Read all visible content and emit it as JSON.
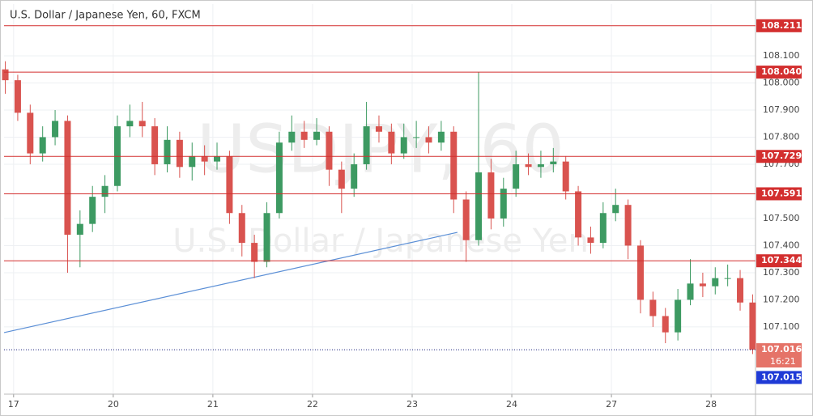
{
  "chart_data": {
    "type": "candlestick",
    "title": "U.S. Dollar / Japanese Yen, 60, FXCM",
    "watermark": "USDJPY, 60",
    "watermark_subtitle": "U.S. Dollar / Japanese Yen",
    "x": [
      -2,
      1,
      4,
      7,
      10,
      13,
      16,
      19,
      22,
      25,
      28,
      31,
      34,
      37,
      40,
      43,
      46,
      49,
      52,
      55,
      58,
      61,
      64,
      67,
      70,
      73,
      76,
      79,
      82,
      85,
      88,
      91,
      94,
      97,
      100,
      103,
      106,
      109,
      112,
      115,
      118,
      121,
      124,
      127,
      130,
      133,
      136,
      139,
      142,
      145,
      148,
      151,
      154,
      157,
      160,
      163,
      166,
      169,
      172,
      175,
      178
    ],
    "open": [
      108.05,
      108.01,
      107.89,
      107.74,
      107.8,
      107.86,
      107.44,
      107.48,
      107.58,
      107.62,
      107.84,
      107.86,
      107.84,
      107.7,
      107.79,
      107.69,
      107.73,
      107.71,
      107.73,
      107.52,
      107.41,
      107.34,
      107.52,
      107.78,
      107.82,
      107.79,
      107.82,
      107.68,
      107.61,
      107.7,
      107.84,
      107.82,
      107.74,
      107.8,
      107.8,
      107.78,
      107.82,
      107.57,
      107.42,
      107.67,
      107.5,
      107.61,
      107.7,
      107.69,
      107.7,
      107.71,
      107.6,
      107.43,
      107.41,
      107.52,
      107.55,
      107.4,
      107.2,
      107.14,
      107.08,
      107.2,
      107.26,
      107.25,
      107.28,
      107.28,
      107.19
    ],
    "high": [
      108.08,
      108.03,
      107.92,
      107.84,
      107.9,
      107.88,
      107.53,
      107.62,
      107.66,
      107.88,
      107.92,
      107.93,
      107.87,
      107.84,
      107.82,
      107.78,
      107.77,
      107.78,
      107.75,
      107.55,
      107.44,
      107.56,
      107.82,
      107.88,
      107.86,
      107.87,
      107.84,
      107.71,
      107.74,
      107.93,
      107.88,
      107.85,
      107.85,
      107.86,
      107.84,
      107.86,
      107.84,
      107.6,
      108.04,
      107.72,
      107.65,
      107.75,
      107.74,
      107.75,
      107.76,
      107.73,
      107.62,
      107.47,
      107.56,
      107.61,
      107.57,
      107.42,
      107.23,
      107.17,
      107.24,
      107.35,
      107.3,
      107.32,
      107.33,
      107.31,
      107.22
    ],
    "low": [
      107.96,
      107.86,
      107.7,
      107.71,
      107.77,
      107.3,
      107.32,
      107.45,
      107.52,
      107.6,
      107.8,
      107.8,
      107.66,
      107.67,
      107.65,
      107.64,
      107.66,
      107.68,
      107.48,
      107.36,
      107.28,
      107.32,
      107.5,
      107.75,
      107.76,
      107.77,
      107.62,
      107.52,
      107.58,
      107.68,
      107.78,
      107.7,
      107.72,
      107.76,
      107.74,
      107.75,
      107.52,
      107.34,
      107.4,
      107.46,
      107.47,
      107.58,
      107.66,
      107.65,
      107.67,
      107.57,
      107.4,
      107.37,
      107.39,
      107.49,
      107.35,
      107.15,
      107.1,
      107.04,
      107.05,
      107.18,
      107.21,
      107.22,
      107.25,
      107.16,
      107.0
    ],
    "close": [
      108.01,
      107.89,
      107.74,
      107.8,
      107.86,
      107.44,
      107.48,
      107.58,
      107.62,
      107.84,
      107.86,
      107.84,
      107.7,
      107.79,
      107.69,
      107.73,
      107.71,
      107.73,
      107.52,
      107.41,
      107.34,
      107.52,
      107.78,
      107.82,
      107.79,
      107.82,
      107.68,
      107.61,
      107.7,
      107.84,
      107.82,
      107.74,
      107.8,
      107.8,
      107.78,
      107.82,
      107.57,
      107.42,
      107.67,
      107.5,
      107.61,
      107.7,
      107.69,
      107.7,
      107.71,
      107.6,
      107.43,
      107.41,
      107.52,
      107.55,
      107.4,
      107.2,
      107.14,
      107.08,
      107.2,
      107.26,
      107.25,
      107.28,
      107.28,
      107.19,
      107.016
    ],
    "up_color": "#3d9a62",
    "down_color": "#d9534f",
    "xlim": [
      -2.3,
      178.7
    ],
    "xticks": [
      {
        "value": 0,
        "label": "17"
      },
      {
        "value": 24,
        "label": "20"
      },
      {
        "value": 48,
        "label": "21"
      },
      {
        "value": 72,
        "label": "22"
      },
      {
        "value": 96,
        "label": "23"
      },
      {
        "value": 120,
        "label": "24"
      },
      {
        "value": 144,
        "label": "27"
      },
      {
        "value": 168,
        "label": "28"
      }
    ],
    "ylim": [
      106.852,
      108.291
    ],
    "yticks": [
      {
        "value": 107.1,
        "label": "107.100"
      },
      {
        "value": 107.2,
        "label": "107.200"
      },
      {
        "value": 107.3,
        "label": "107.300"
      },
      {
        "value": 107.4,
        "label": "107.400"
      },
      {
        "value": 107.5,
        "label": "107.500"
      },
      {
        "value": 107.7,
        "label": "107.700"
      },
      {
        "value": 107.8,
        "label": "107.800"
      },
      {
        "value": 107.9,
        "label": "107.900"
      },
      {
        "value": 108.0,
        "label": "108.000"
      },
      {
        "value": 108.1,
        "label": "108.100"
      }
    ],
    "grid": true,
    "hlines": [
      {
        "value": 108.211,
        "label": "108.211"
      },
      {
        "value": 108.04,
        "label": "108.040"
      },
      {
        "value": 107.729,
        "label": "107.729"
      },
      {
        "value": 107.591,
        "label": "107.591"
      },
      {
        "value": 107.344,
        "label": "107.344"
      }
    ],
    "hline_color": "#d32f2f",
    "last_price": {
      "value": 107.016,
      "label": "107.016",
      "countdown": "16:21"
    },
    "bid_price": {
      "value": 107.015,
      "label": "107.015"
    },
    "trendline": {
      "x": [
        -2.3,
        106.9
      ],
      "y": [
        107.079,
        107.449
      ],
      "color": "#5b8fd6"
    }
  }
}
